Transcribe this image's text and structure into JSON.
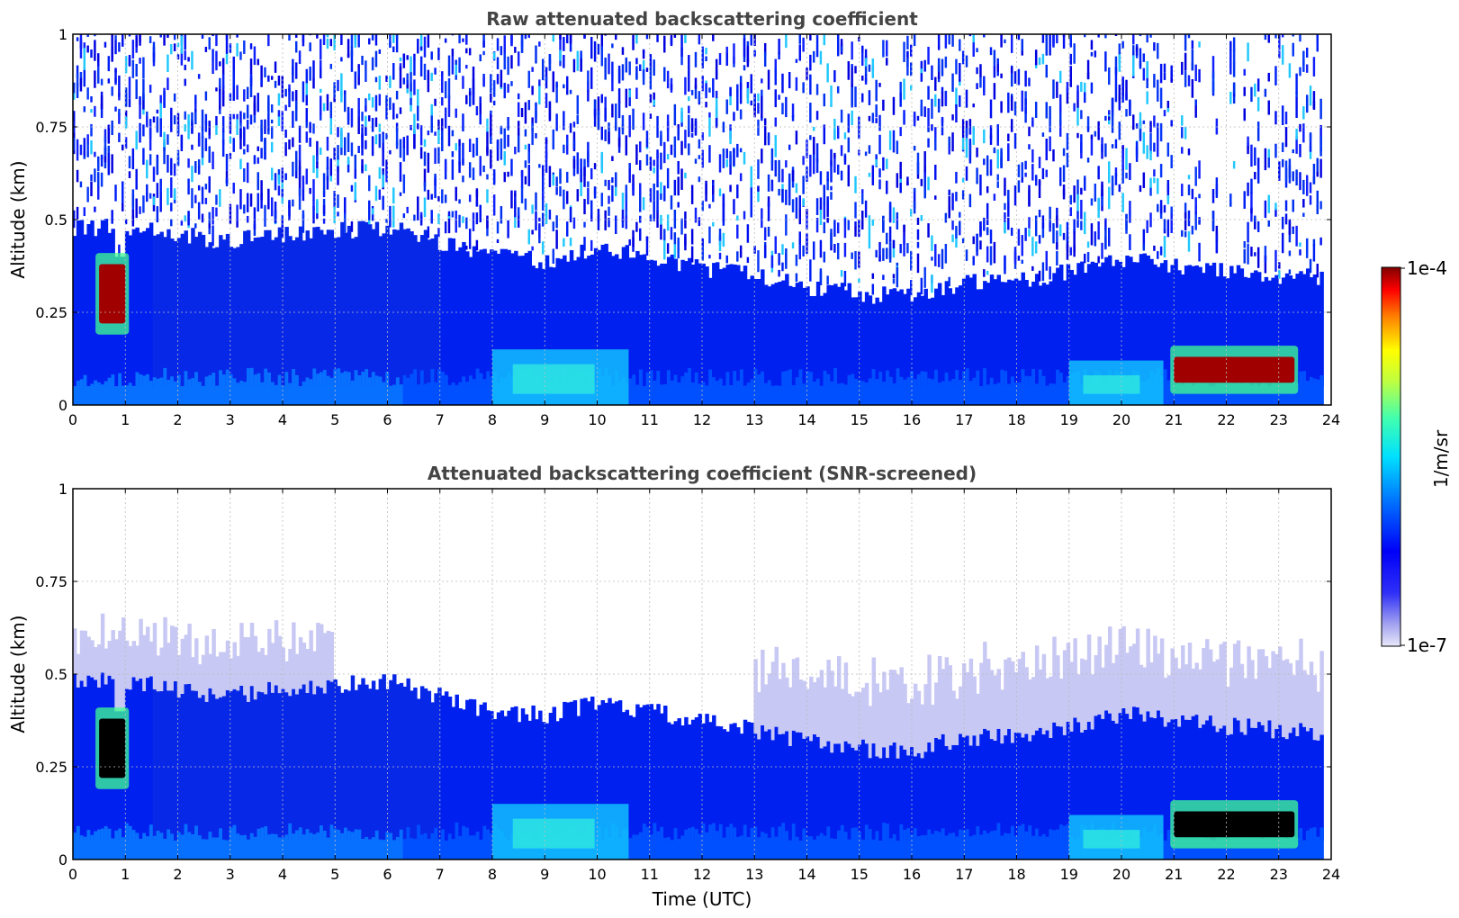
{
  "chart_data": [
    {
      "type": "heatmap",
      "title": "Raw attenuated backscattering coefficient",
      "xlabel": "",
      "ylabel": "Altitude (km)",
      "xlim": [
        0,
        24
      ],
      "ylim": [
        0,
        1
      ],
      "x_ticks": [
        "0",
        "1",
        "2",
        "3",
        "4",
        "5",
        "6",
        "7",
        "8",
        "9",
        "10",
        "11",
        "12",
        "13",
        "14",
        "15",
        "16",
        "17",
        "18",
        "19",
        "20",
        "21",
        "22",
        "23",
        "24"
      ],
      "y_ticks": [
        "0",
        "0.25",
        "0.5",
        "0.75",
        "1"
      ],
      "grid": true,
      "screened": false,
      "colormap": "jet",
      "data_end_hour": 23.85,
      "boundary_layer_top_km": [
        {
          "hour": 0,
          "km": 0.48
        },
        {
          "hour": 1,
          "km": 0.48
        },
        {
          "hour": 2,
          "km": 0.46
        },
        {
          "hour": 3,
          "km": 0.44
        },
        {
          "hour": 4,
          "km": 0.46
        },
        {
          "hour": 5,
          "km": 0.47
        },
        {
          "hour": 6,
          "km": 0.48
        },
        {
          "hour": 7,
          "km": 0.44
        },
        {
          "hour": 8,
          "km": 0.4
        },
        {
          "hour": 9,
          "km": 0.39
        },
        {
          "hour": 10,
          "km": 0.42
        },
        {
          "hour": 11,
          "km": 0.4
        },
        {
          "hour": 12,
          "km": 0.37
        },
        {
          "hour": 13,
          "km": 0.35
        },
        {
          "hour": 14,
          "km": 0.32
        },
        {
          "hour": 15,
          "km": 0.3
        },
        {
          "hour": 16,
          "km": 0.29
        },
        {
          "hour": 17,
          "km": 0.33
        },
        {
          "hour": 18,
          "km": 0.33
        },
        {
          "hour": 19,
          "km": 0.36
        },
        {
          "hour": 20,
          "km": 0.39
        },
        {
          "hour": 21,
          "km": 0.38
        },
        {
          "hour": 22,
          "km": 0.36
        },
        {
          "hour": 23,
          "km": 0.35
        },
        {
          "hour": 23.85,
          "km": 0.34
        }
      ],
      "features": [
        {
          "kind": "strong cloud layer",
          "hour_start": 0.5,
          "hour_end": 1.0,
          "km_low": 0.22,
          "km_high": 0.38,
          "value": "1e-4"
        },
        {
          "kind": "aerosol layer",
          "hour_start": 8.0,
          "hour_end": 10.6,
          "km_low": 0.0,
          "km_high": 0.15,
          "value": "~1e-6"
        },
        {
          "kind": "aerosol layer",
          "hour_start": 19.0,
          "hour_end": 20.8,
          "km_low": 0.0,
          "km_high": 0.12,
          "value": "~1e-6"
        },
        {
          "kind": "strong cloud layer",
          "hour_start": 21.0,
          "hour_end": 23.3,
          "km_low": 0.06,
          "km_high": 0.13,
          "value": "1e-4"
        }
      ]
    },
    {
      "type": "heatmap",
      "title": "Attenuated backscattering coefficient (SNR-screened)",
      "xlabel": "Time (UTC)",
      "ylabel": "Altitude (km)",
      "xlim": [
        0,
        24
      ],
      "ylim": [
        0,
        1
      ],
      "x_ticks": [
        "0",
        "1",
        "2",
        "3",
        "4",
        "5",
        "6",
        "7",
        "8",
        "9",
        "10",
        "11",
        "12",
        "13",
        "14",
        "15",
        "16",
        "17",
        "18",
        "19",
        "20",
        "21",
        "22",
        "23",
        "24"
      ],
      "y_ticks": [
        "0",
        "0.25",
        "0.5",
        "0.75",
        "1"
      ],
      "grid": true,
      "screened": true,
      "colormap": "jet",
      "data_end_hour": 23.85,
      "notes": "Strong cloud returns rendered in black after screening"
    }
  ],
  "colorbar": {
    "top_label": "1e-4",
    "bottom_label": "1e-7",
    "unit_label": "1/m/sr",
    "scale": "log"
  }
}
